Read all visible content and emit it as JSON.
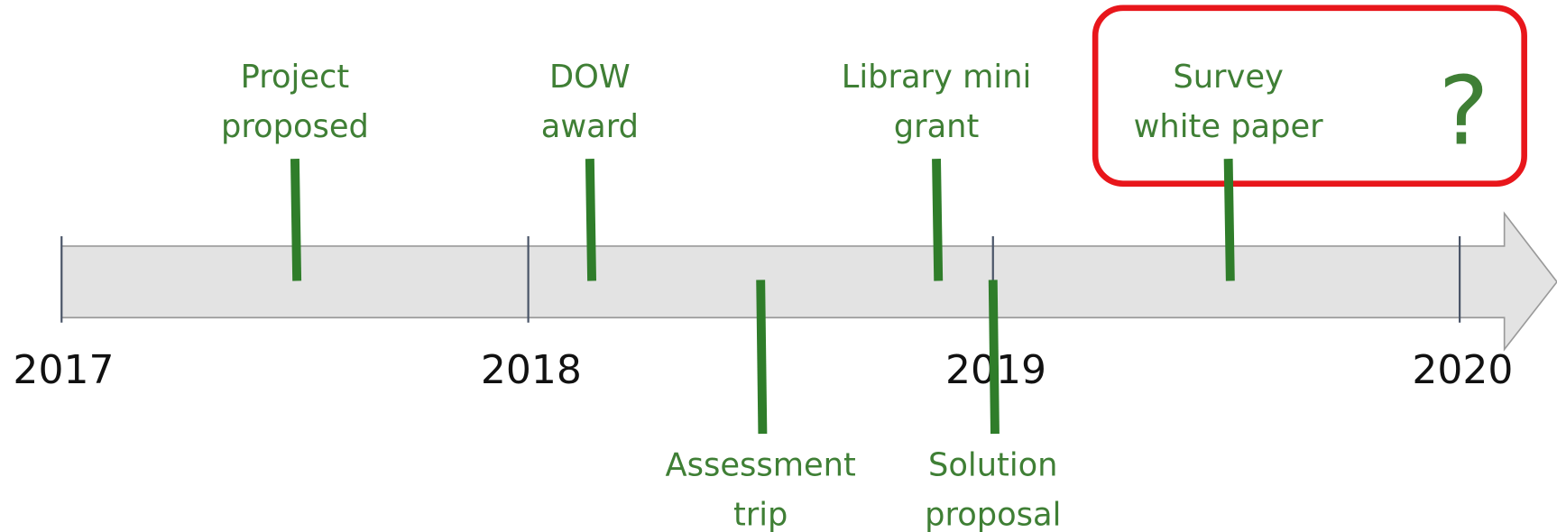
{
  "years": [
    "2017",
    "2018",
    "2019",
    "2020"
  ],
  "events": [
    {
      "lines": [
        "Project",
        "proposed"
      ]
    },
    {
      "lines": [
        "DOW",
        "award"
      ]
    },
    {
      "lines": [
        "Library mini",
        "grant"
      ]
    },
    {
      "lines": [
        "Survey",
        "white paper"
      ]
    },
    {
      "lines": [
        "Assessment",
        "trip"
      ]
    },
    {
      "lines": [
        "Solution",
        "proposal"
      ]
    }
  ],
  "highlight": "?"
}
